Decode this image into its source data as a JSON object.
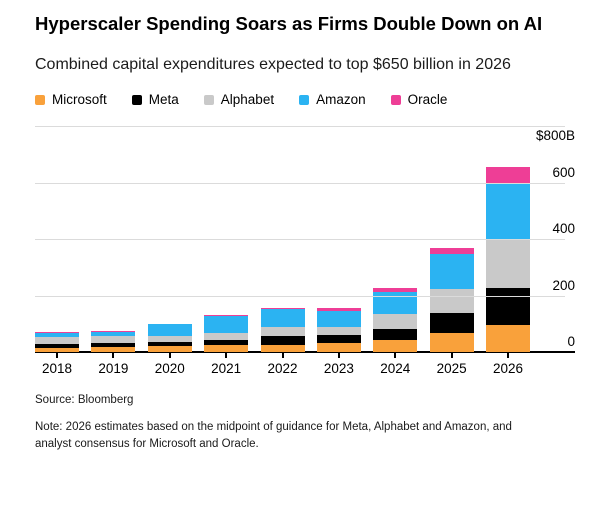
{
  "header": {
    "title": "Hyperscaler Spending Soars as Firms Double Down on AI",
    "subtitle": "Combined capital expenditures expected to top $650 billion in 2026"
  },
  "colors": {
    "microsoft": "#F9A13B",
    "meta": "#000000",
    "alphabet": "#C9C9C9",
    "amazon": "#2BB3F2",
    "oracle": "#EE3E96",
    "gridline": "#DBDBDB",
    "axis": "#000000"
  },
  "chart_data": {
    "type": "bar",
    "stacked": true,
    "title": "Hyperscaler Spending Soars as Firms Double Down on AI",
    "subtitle": "Combined capital expenditures expected to top $650 billion in 2026",
    "unit": "$B",
    "categories": [
      "2018",
      "2019",
      "2020",
      "2021",
      "2022",
      "2023",
      "2024",
      "2025",
      "2026"
    ],
    "series": [
      {
        "name": "Microsoft",
        "color": "#F9A13B",
        "values": [
          15,
          16,
          20,
          24,
          25,
          31,
          44,
          68,
          95
        ]
      },
      {
        "name": "Meta",
        "color": "#000000",
        "values": [
          14,
          16,
          16,
          19,
          31,
          28,
          39,
          70,
          130
        ]
      },
      {
        "name": "Alphabet",
        "color": "#C9C9C9",
        "values": [
          25,
          23,
          22,
          25,
          31,
          31,
          53,
          85,
          175
        ]
      },
      {
        "name": "Amazon",
        "color": "#2BB3F2",
        "values": [
          15,
          17,
          40,
          61,
          64,
          55,
          78,
          125,
          200
        ]
      },
      {
        "name": "Oracle",
        "color": "#EE3E96",
        "values": [
          2,
          2,
          2,
          2,
          5,
          11,
          14,
          22,
          55
        ]
      }
    ],
    "y_axis": {
      "min": 0,
      "max": 800,
      "label_position": "right",
      "ticks": [
        {
          "value": 800,
          "label": "$800B"
        },
        {
          "value": 600,
          "label": "600"
        },
        {
          "value": 400,
          "label": "400"
        },
        {
          "value": 200,
          "label": "200"
        },
        {
          "value": 0,
          "label": "0"
        }
      ]
    },
    "grid": true,
    "legend_position": "top",
    "xlabel": "",
    "ylabel": "$800B"
  },
  "footer": {
    "source": "Source: Bloomberg",
    "note": "Note: 2026 estimates based on the midpoint of guidance for Meta, Alphabet and Amazon, and analyst consensus for Microsoft and Oracle."
  }
}
